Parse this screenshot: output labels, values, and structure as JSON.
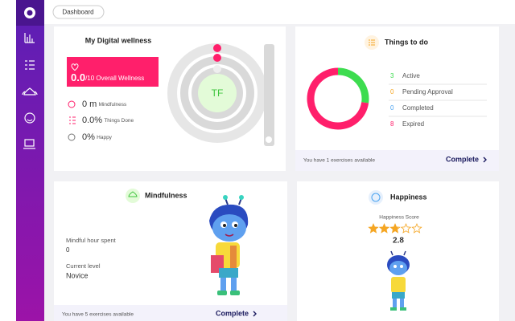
{
  "breadcrumb": "Dashboard",
  "wellness": {
    "title": "My Digital wellness",
    "score": "0.0",
    "score_suffix": "/10 Overall Wellness",
    "stats": [
      {
        "value": "0 m",
        "label": "Mindfulness"
      },
      {
        "value": "0.0%",
        "label": "Things Done"
      },
      {
        "value": "0%",
        "label": "Happy"
      }
    ],
    "avatar": "TF"
  },
  "todo": {
    "title": "Things to do",
    "items": [
      {
        "count": 3,
        "label": "Active",
        "color": "#3ddc4f"
      },
      {
        "count": 0,
        "label": "Pending Approval",
        "color": "#f5a623"
      },
      {
        "count": 0,
        "label": "Completed",
        "color": "#4aa3f0"
      },
      {
        "count": 8,
        "label": "Expired",
        "color": "#ff1f6b"
      }
    ],
    "footer": "You have 1 exercises available",
    "action": "Complete"
  },
  "mindfulness": {
    "title": "Mindfulness",
    "hours_label": "Mindful hour spent",
    "hours": "0",
    "level_label": "Current level",
    "level": "Novice",
    "footer": "You have 5 exercises available",
    "action": "Complete"
  },
  "happiness": {
    "title": "Happiness",
    "score_label": "Happiness Score",
    "score": 2.8,
    "star_count": 5,
    "star_color": "#f5a623"
  }
}
